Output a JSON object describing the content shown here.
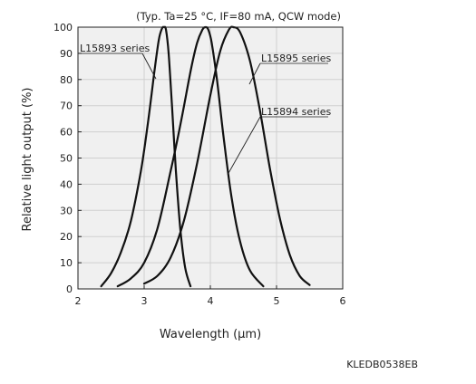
{
  "chart_data": {
    "type": "line",
    "subtitle": "(Typ. Ta=25 °C, IF=80 mA, QCW mode)",
    "xlabel": "Wavelength (μm)",
    "ylabel": "Relative light output (%)",
    "xlim": [
      2,
      6
    ],
    "ylim": [
      0,
      100
    ],
    "x_ticks": [
      2,
      3,
      4,
      5,
      6
    ],
    "y_ticks": [
      0,
      10,
      20,
      30,
      40,
      50,
      60,
      70,
      80,
      90,
      100
    ],
    "grid": "vertical lines at x ticks, horizontal lines at y ticks",
    "legend": "none (inline labels with leader lines)",
    "series": [
      {
        "name": "L15893 series",
        "x": [
          2.35,
          2.5,
          2.65,
          2.8,
          2.95,
          3.05,
          3.15,
          3.22,
          3.27,
          3.3,
          3.33,
          3.37,
          3.42,
          3.48,
          3.55,
          3.62,
          3.7
        ],
        "y": [
          1,
          6,
          14,
          26,
          45,
          62,
          82,
          95,
          99.5,
          100,
          99,
          90,
          70,
          45,
          22,
          8,
          1
        ]
      },
      {
        "name": "L15894 series",
        "x": [
          2.6,
          2.8,
          3.0,
          3.2,
          3.4,
          3.55,
          3.7,
          3.8,
          3.88,
          3.93,
          3.97,
          4.02,
          4.1,
          4.2,
          4.32,
          4.45,
          4.6,
          4.8
        ],
        "y": [
          1,
          4,
          10,
          23,
          45,
          63,
          83,
          94,
          99,
          100,
          99,
          94,
          80,
          58,
          35,
          18,
          7,
          1
        ]
      },
      {
        "name": "L15895 series",
        "x": [
          3.0,
          3.2,
          3.4,
          3.6,
          3.8,
          4.0,
          4.15,
          4.28,
          4.35,
          4.45,
          4.6,
          4.75,
          4.9,
          5.05,
          5.2,
          5.35,
          5.5
        ],
        "y": [
          2,
          5,
          12,
          26,
          48,
          74,
          91,
          99,
          100,
          98,
          87,
          68,
          46,
          27,
          13,
          5,
          1.5
        ]
      }
    ],
    "annotations": [
      {
        "text": "L15893 series",
        "series": "L15893 series"
      },
      {
        "text": "L15894 series",
        "series": "L15894 series"
      },
      {
        "text": "L15895 series",
        "series": "L15895 series"
      }
    ]
  },
  "doc_code": "KLEDB0538EB"
}
